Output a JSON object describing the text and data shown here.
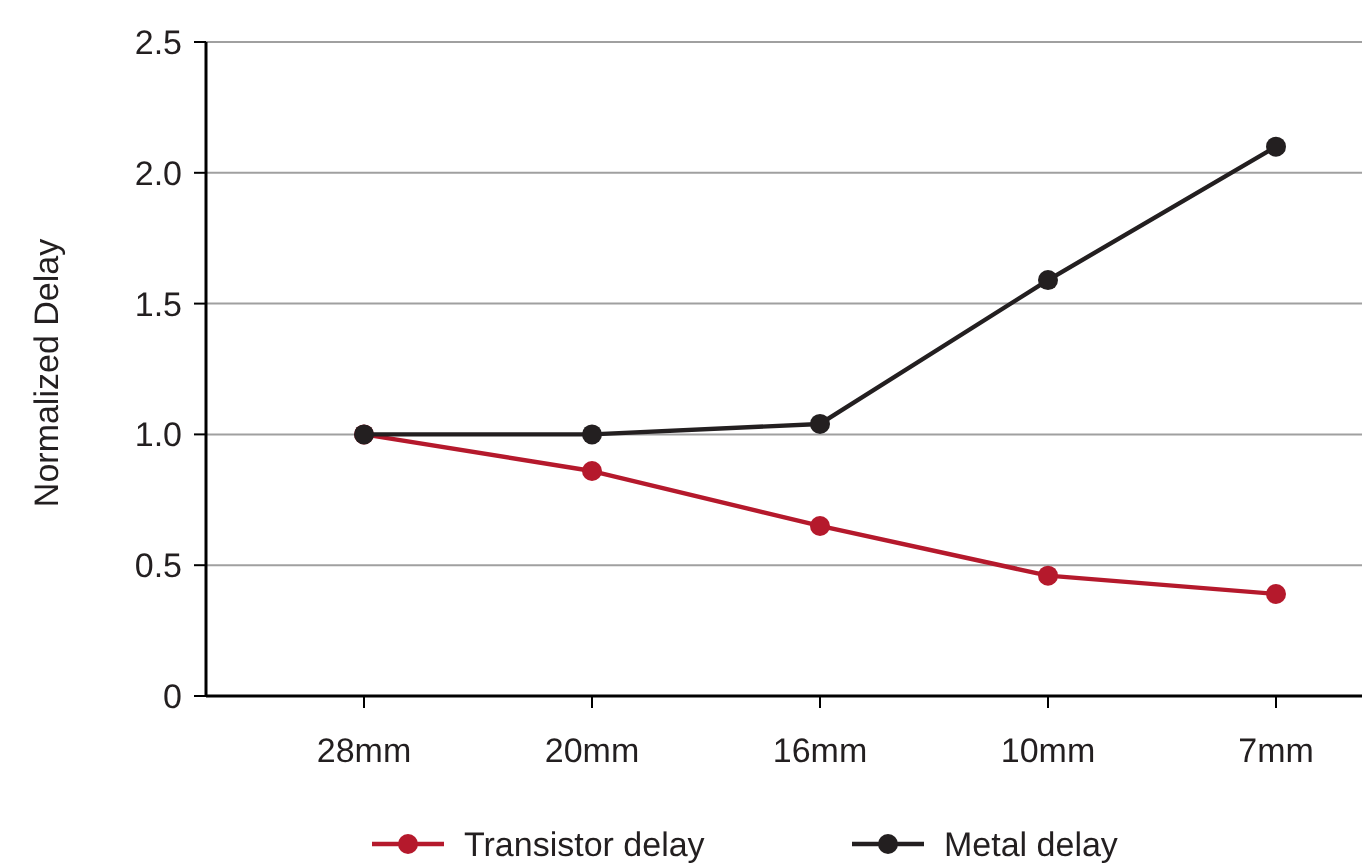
{
  "chart_data": {
    "type": "line",
    "ylabel": "Normalized Delay",
    "categories": [
      "28mm",
      "20mm",
      "16mm",
      "10mm",
      "7mm"
    ],
    "series": [
      {
        "name": "Transistor delay",
        "color": "#b5192c",
        "values": [
          1,
          0.86,
          0.65,
          0.46,
          0.39
        ]
      },
      {
        "name": "Metal delay",
        "color": "#231f20",
        "values": [
          1,
          1,
          1.04,
          1.59,
          2.1
        ]
      }
    ],
    "ylim": [
      0,
      2.5
    ],
    "yticks": [
      0,
      0.5,
      {
        "value": 1,
        "label": "1.0"
      },
      1.5,
      {
        "value": 2,
        "label": "2.0"
      },
      2.5
    ],
    "grid": "y",
    "legend": "bottom",
    "marker": "circle",
    "line_style": "solid"
  }
}
